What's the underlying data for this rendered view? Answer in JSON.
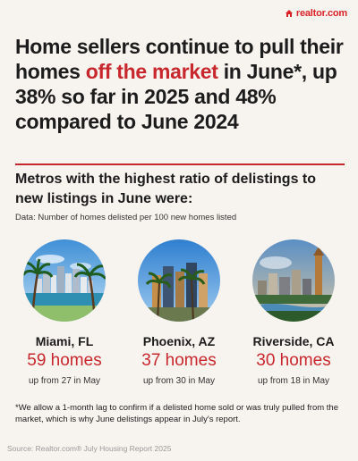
{
  "brand": {
    "logo_text": "realtor.com",
    "logo_icon": "house-icon",
    "accent": "#c8272d"
  },
  "headline": {
    "part1": "Home sellers continue to pull their homes ",
    "highlight": "off the market",
    "part2": " in June*, up 38% so far in 2025 and 48% compared to June 2024"
  },
  "subheading": "Metros with the highest ratio of delistings to new listings in June were:",
  "data_note": "Data: Number of homes delisted per 100 new homes listed",
  "metros": [
    {
      "city": "Miami, FL",
      "count": "59 homes",
      "previous": "up from 27 in May"
    },
    {
      "city": "Phoenix, AZ",
      "count": "37 homes",
      "previous": "up from 30 in May"
    },
    {
      "city": "Riverside, CA",
      "count": "30 homes",
      "previous": "up from 18 in May"
    }
  ],
  "footnote": "*We allow a 1-month lag to confirm if a delisted home sold or was truly pulled from the market, which is why June delistings appear in July's report.",
  "source": "Source: Realtor.com® July Housing Report 2025"
}
